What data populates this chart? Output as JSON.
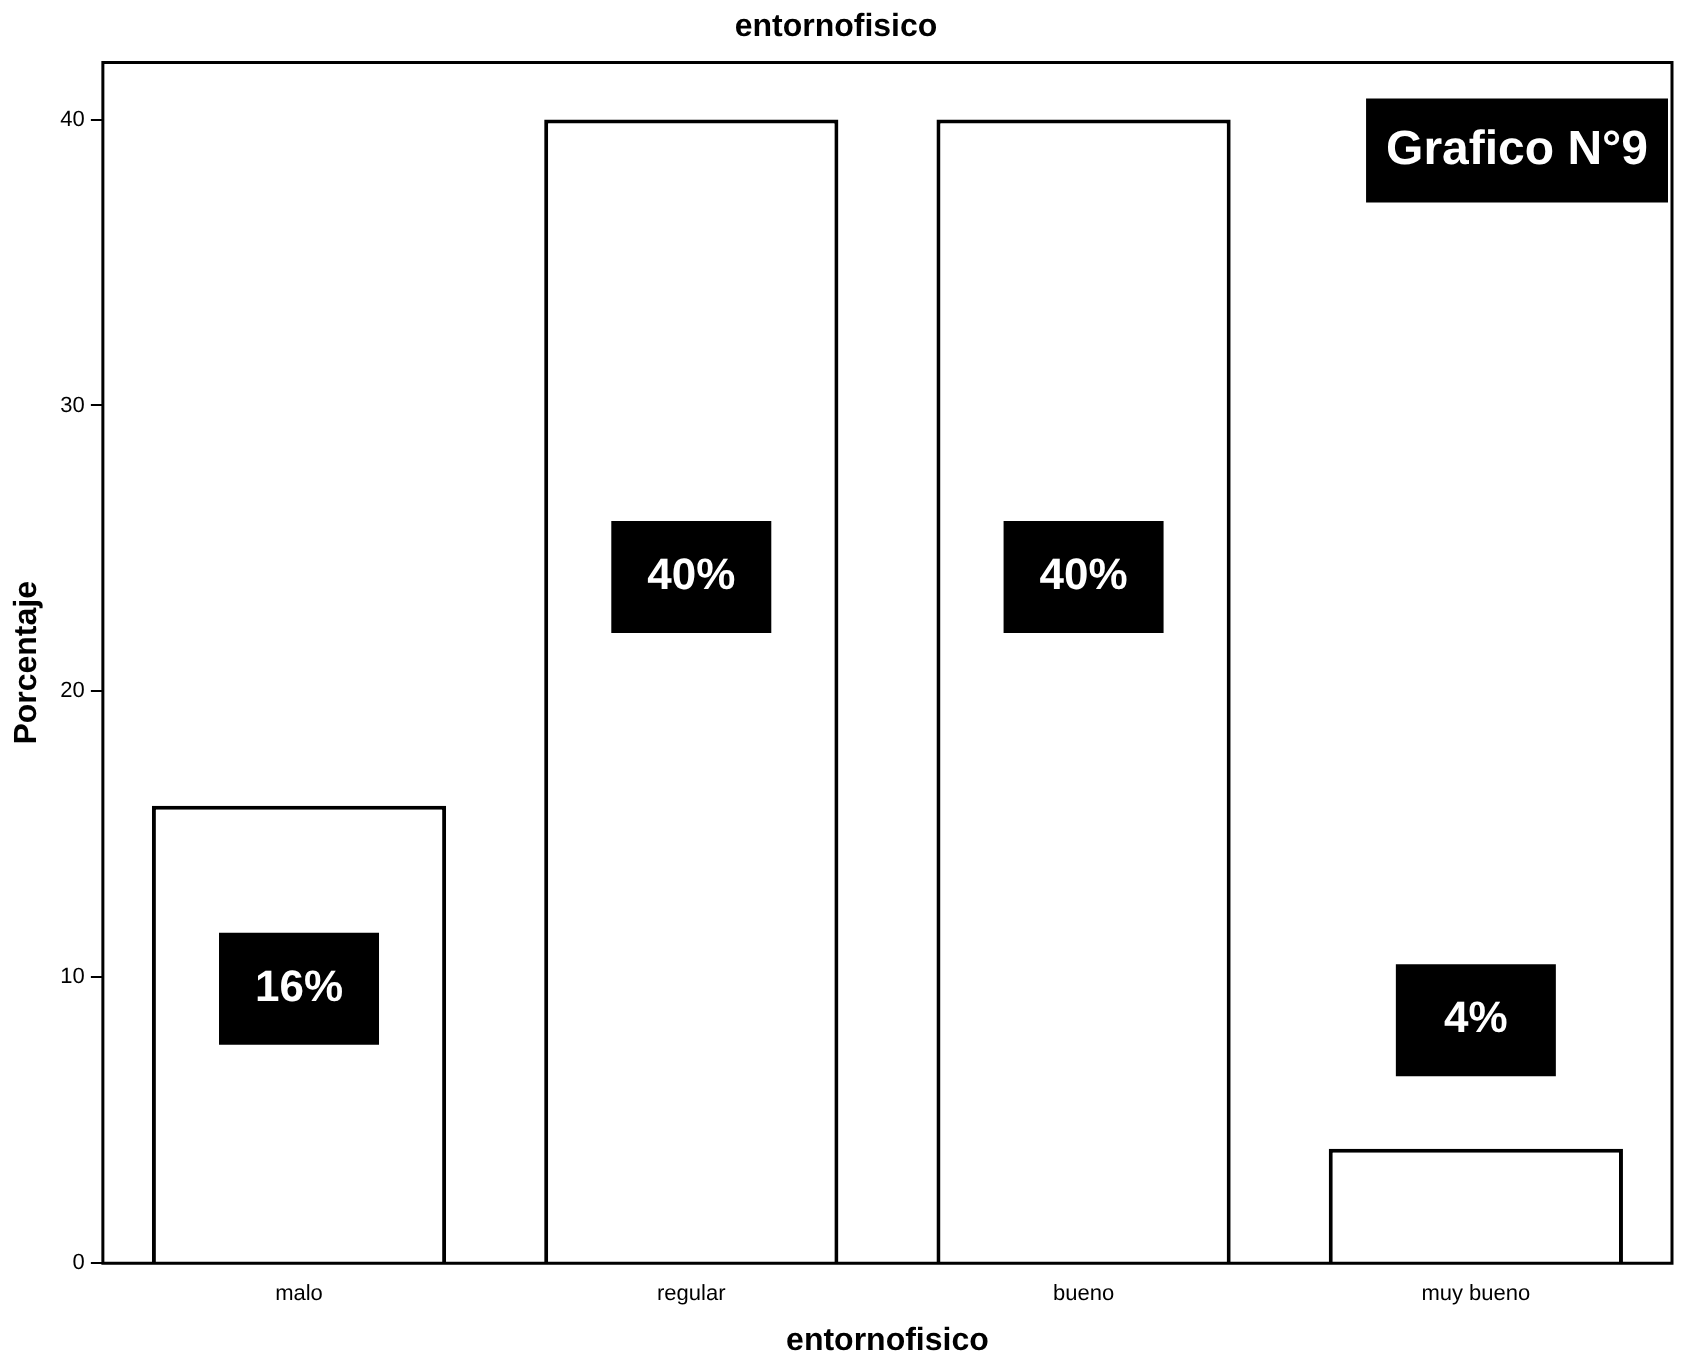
{
  "chart_data": {
    "type": "bar",
    "title": "entornofisico",
    "xlabel": "entornofisico",
    "ylabel": "Porcentaje",
    "categories": [
      "malo",
      "regular",
      "bueno",
      "muy bueno"
    ],
    "values": [
      16,
      40,
      40,
      4
    ],
    "value_labels": [
      "16%",
      "40%",
      "40%",
      "4%"
    ],
    "color": "#ffffff",
    "ylim": [
      0,
      42
    ],
    "yticks": [
      0,
      10,
      20,
      30,
      40
    ],
    "grid": false,
    "legend": false,
    "annotations": [
      "Grafico N°9"
    ]
  }
}
